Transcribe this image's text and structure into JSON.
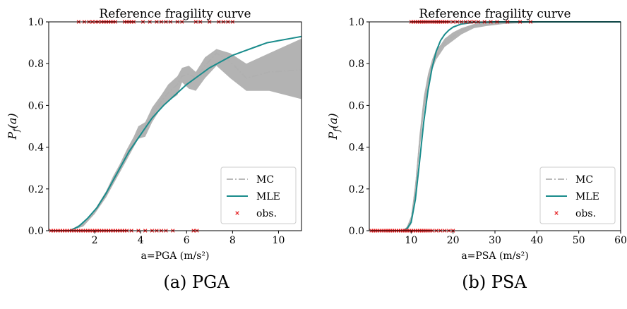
{
  "captions": {
    "left": "(a) PGA",
    "right": "(b) PSA"
  },
  "chart_data": [
    {
      "type": "line",
      "title": "Reference fragility curve",
      "xlabel": "a=PGA (m/s²)",
      "ylabel": "P_f(a)",
      "xlim": [
        0,
        11
      ],
      "ylim": [
        0,
        1.0
      ],
      "xticks": [
        2,
        4,
        6,
        8,
        10
      ],
      "yticks": [
        0.0,
        0.2,
        0.4,
        0.6,
        0.8,
        1.0
      ],
      "grid": false,
      "legend_position": "bottom-right",
      "legend": [
        "MC",
        "MLE",
        "obs."
      ],
      "colors": {
        "mc": "#b0b0b0",
        "mc_band": "#b3b3b3",
        "mle": "#1a8c8c",
        "obs": "#e41a1c"
      },
      "series": [
        {
          "name": "MC",
          "x": [
            0.9,
            1.5,
            2.0,
            2.5,
            2.8,
            3.1,
            3.4,
            3.7,
            3.9,
            4.2,
            4.5,
            4.9,
            5.2,
            5.6,
            5.8,
            6.1,
            6.4,
            6.8,
            7.3,
            7.9,
            8.6,
            9.6,
            11.0
          ],
          "y": [
            0.0,
            0.03,
            0.09,
            0.17,
            0.24,
            0.3,
            0.37,
            0.42,
            0.47,
            0.5,
            0.55,
            0.62,
            0.66,
            0.7,
            0.74,
            0.75,
            0.73,
            0.79,
            0.85,
            0.81,
            0.73,
            0.76,
            0.77
          ],
          "lower": [
            0.0,
            0.02,
            0.08,
            0.16,
            0.22,
            0.28,
            0.34,
            0.4,
            0.44,
            0.45,
            0.52,
            0.59,
            0.62,
            0.65,
            0.71,
            0.68,
            0.67,
            0.73,
            0.79,
            0.73,
            0.67,
            0.67,
            0.63
          ],
          "upper": [
            0.0,
            0.04,
            0.1,
            0.19,
            0.26,
            0.32,
            0.39,
            0.45,
            0.5,
            0.52,
            0.59,
            0.65,
            0.7,
            0.74,
            0.78,
            0.79,
            0.76,
            0.83,
            0.87,
            0.85,
            0.8,
            0.85,
            0.92
          ]
        },
        {
          "name": "MLE",
          "x": [
            0.9,
            1.3,
            1.7,
            2.1,
            2.5,
            3.0,
            3.5,
            4.0,
            4.5,
            5.0,
            5.5,
            6.0,
            6.5,
            7.0,
            7.5,
            8.0,
            8.5,
            9.0,
            9.5,
            10.0,
            10.5,
            11.0
          ],
          "y": [
            0.0,
            0.02,
            0.06,
            0.11,
            0.18,
            0.28,
            0.38,
            0.46,
            0.54,
            0.6,
            0.65,
            0.7,
            0.74,
            0.78,
            0.81,
            0.84,
            0.86,
            0.88,
            0.9,
            0.91,
            0.92,
            0.93
          ]
        },
        {
          "name": "obs.",
          "failed_x": [
            1.3,
            1.55,
            1.75,
            1.9,
            2.05,
            2.15,
            2.3,
            2.4,
            2.5,
            2.6,
            2.7,
            2.8,
            2.9,
            3.3,
            3.4,
            3.5,
            3.6,
            3.7,
            4.1,
            4.4,
            4.7,
            4.9,
            5.1,
            5.3,
            5.6,
            5.8,
            6.4,
            6.6,
            7.0,
            7.4,
            7.6,
            7.8,
            8.0
          ],
          "safe_x": [
            0.1,
            0.2,
            0.3,
            0.4,
            0.5,
            0.6,
            0.7,
            0.8,
            0.9,
            1.0,
            1.1,
            1.2,
            1.3,
            1.4,
            1.5,
            1.6,
            1.7,
            1.8,
            1.9,
            2.0,
            2.1,
            2.2,
            2.3,
            2.4,
            2.5,
            2.6,
            2.7,
            2.8,
            2.9,
            3.0,
            3.1,
            3.2,
            3.3,
            3.4,
            3.6,
            3.9,
            4.2,
            4.5,
            4.7,
            4.9,
            5.1,
            5.4,
            6.3,
            6.45
          ]
        }
      ]
    },
    {
      "type": "line",
      "title": "Reference fragility curve",
      "xlabel": "a=PSA (m/s²)",
      "ylabel": "P_f(a)",
      "xlim": [
        0,
        60
      ],
      "ylim": [
        0,
        1.0
      ],
      "xticks": [
        10,
        20,
        30,
        40,
        50,
        60
      ],
      "yticks": [
        0.0,
        0.2,
        0.4,
        0.6,
        0.8,
        1.0
      ],
      "grid": false,
      "legend_position": "bottom-right",
      "legend": [
        "MC",
        "MLE",
        "obs."
      ],
      "colors": {
        "mc": "#b0b0b0",
        "mc_band": "#b3b3b3",
        "mle": "#1a8c8c",
        "obs": "#e41a1c"
      },
      "series": [
        {
          "name": "MC",
          "x": [
            8.0,
            9.0,
            10.0,
            11.0,
            12.0,
            13.0,
            14.0,
            15.0,
            16.0,
            17.0,
            18.0,
            20.0,
            22.0,
            25.0,
            28.0,
            32.0,
            38.0,
            45.0,
            60.0
          ],
          "y": [
            0.0,
            0.01,
            0.05,
            0.2,
            0.42,
            0.6,
            0.71,
            0.79,
            0.84,
            0.87,
            0.9,
            0.93,
            0.96,
            0.98,
            0.99,
            0.995,
            1.0,
            1.0,
            1.0
          ],
          "lower": [
            0.0,
            0.0,
            0.03,
            0.17,
            0.38,
            0.56,
            0.68,
            0.77,
            0.82,
            0.85,
            0.88,
            0.91,
            0.94,
            0.97,
            0.98,
            0.99,
            0.995,
            1.0,
            1.0
          ],
          "upper": [
            0.0,
            0.02,
            0.07,
            0.23,
            0.46,
            0.64,
            0.75,
            0.82,
            0.87,
            0.89,
            0.92,
            0.95,
            0.97,
            0.99,
            1.0,
            1.0,
            1.0,
            1.0,
            1.0
          ]
        },
        {
          "name": "MLE",
          "x": [
            8.0,
            9.0,
            10.0,
            11.0,
            12.0,
            13.0,
            14.0,
            15.0,
            16.0,
            17.0,
            18.0,
            19.0,
            20.0,
            22.0,
            25.0,
            30.0,
            40.0,
            60.0
          ],
          "y": [
            0.0,
            0.01,
            0.04,
            0.15,
            0.33,
            0.52,
            0.67,
            0.78,
            0.86,
            0.91,
            0.94,
            0.96,
            0.975,
            0.99,
            0.997,
            1.0,
            1.0,
            1.0
          ],
          "lower": null,
          "upper": null
        },
        {
          "name": "obs.",
          "failed_x": [
            10.0,
            10.5,
            11.0,
            11.5,
            12.0,
            12.5,
            13.0,
            13.5,
            14.0,
            14.5,
            15.0,
            15.5,
            16.0,
            16.5,
            17.0,
            17.5,
            18.0,
            18.5,
            19.0,
            20.0,
            21.0,
            22.0,
            23.0,
            24.0,
            25.0,
            26.0,
            27.5,
            29.0,
            30.5,
            33.0,
            36.0,
            38.5
          ],
          "safe_x": [
            0.5,
            1.0,
            1.5,
            2.0,
            2.5,
            3.0,
            3.5,
            4.0,
            4.5,
            5.0,
            5.5,
            6.0,
            6.5,
            7.0,
            7.5,
            8.0,
            8.5,
            9.0,
            9.5,
            10.0,
            10.5,
            11.0,
            11.5,
            12.0,
            12.5,
            13.0,
            13.5,
            14.0,
            14.5,
            15.0,
            16.0,
            17.0,
            18.0,
            19.0,
            20.0
          ]
        }
      ]
    }
  ]
}
